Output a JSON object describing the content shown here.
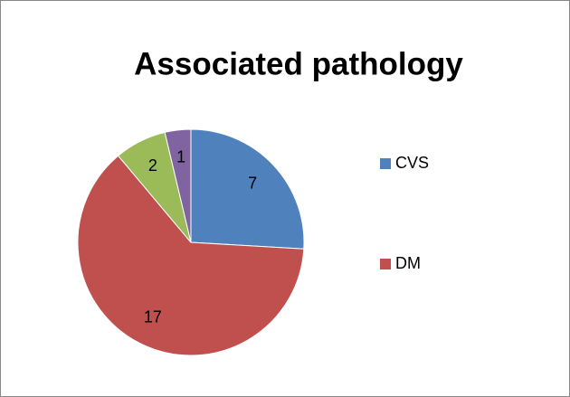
{
  "chart_data": {
    "type": "pie",
    "title": "Associated pathology",
    "categories": [
      "CVS",
      "DM",
      null,
      null
    ],
    "values": [
      7,
      17,
      2,
      1
    ],
    "colors": [
      "#4f81bd",
      "#c0504d",
      "#9bbb59",
      "#8064a2"
    ],
    "legend": "right"
  }
}
